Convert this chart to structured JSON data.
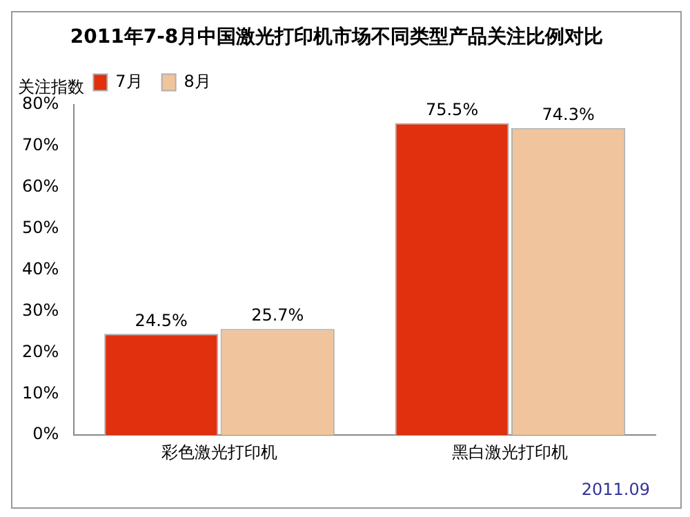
{
  "chart_data": {
    "type": "bar",
    "title": "2011年7-8月中国激光打印机市场不同类型产品关注比例对比",
    "ylabel": "关注指数",
    "categories": [
      "彩色激光打印机",
      "黑白激光打印机"
    ],
    "series": [
      {
        "name": "7月",
        "color": "#e0300e",
        "values": [
          24.5,
          75.5
        ],
        "value_labels": [
          "24.5%",
          "75.5%"
        ]
      },
      {
        "name": "8月",
        "color": "#f0c49c",
        "values": [
          25.7,
          74.3
        ],
        "value_labels": [
          "25.7%",
          "74.3%"
        ]
      }
    ],
    "ylim": [
      0,
      80
    ],
    "yticks": [
      {
        "value": 0,
        "label": "0%"
      },
      {
        "value": 10,
        "label": "10%"
      },
      {
        "value": 20,
        "label": "20%"
      },
      {
        "value": 30,
        "label": "30%"
      },
      {
        "value": 40,
        "label": "40%"
      },
      {
        "value": 50,
        "label": "50%"
      },
      {
        "value": 60,
        "label": "60%"
      },
      {
        "value": 70,
        "label": "70%"
      },
      {
        "value": 80,
        "label": "80%"
      }
    ],
    "grid": false,
    "legend": "top left",
    "annotations": [
      "2011.09"
    ]
  }
}
